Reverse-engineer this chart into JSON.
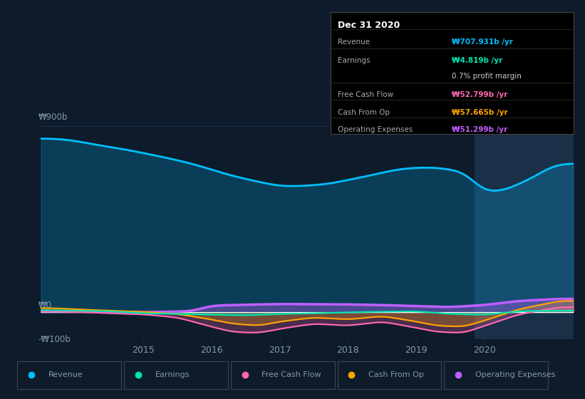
{
  "background_color": "#0d1b2a",
  "plot_bg_color": "#0d1b2a",
  "ylabel_top": "₩900b",
  "ylabel_bottom": "-₩100b",
  "ylabel_zero": "₩0",
  "x_ticks": [
    2015,
    2016,
    2017,
    2018,
    2019,
    2020
  ],
  "x_range": [
    2013.5,
    2021.3
  ],
  "y_range": [
    -130,
    970
  ],
  "series": {
    "Revenue": {
      "color": "#00bfff",
      "linewidth": 2.0
    },
    "Earnings": {
      "color": "#00e5b0",
      "linewidth": 1.5
    },
    "Free Cash Flow": {
      "color": "#ff69b4",
      "linewidth": 1.5
    },
    "Cash From Op": {
      "color": "#ffa500",
      "linewidth": 1.5
    },
    "Operating Expenses": {
      "color": "#bf5fff",
      "linewidth": 2.5
    }
  },
  "tooltip": {
    "title": "Dec 31 2020",
    "rows": [
      {
        "label": "Revenue",
        "value": "₩707.931b /yr",
        "color": "#00bfff"
      },
      {
        "label": "Earnings",
        "value": "₩4.819b /yr",
        "color": "#00e5b0"
      },
      {
        "label": "",
        "value": "0.7% profit margin",
        "color": "#cccccc"
      },
      {
        "label": "Free Cash Flow",
        "value": "₩52.799b /yr",
        "color": "#ff69b4"
      },
      {
        "label": "Cash From Op",
        "value": "₩57.665b /yr",
        "color": "#ffa500"
      },
      {
        "label": "Operating Expenses",
        "value": "₩51.299b /yr",
        "color": "#bf5fff"
      }
    ]
  },
  "legend": [
    {
      "label": "Revenue",
      "color": "#00bfff"
    },
    {
      "label": "Earnings",
      "color": "#00e5b0"
    },
    {
      "label": "Free Cash Flow",
      "color": "#ff69b4"
    },
    {
      "label": "Cash From Op",
      "color": "#ffa500"
    },
    {
      "label": "Operating Expenses",
      "color": "#bf5fff"
    }
  ],
  "grid_color": "#1e3050",
  "text_color": "#8899aa",
  "highlight_bg": "#1a2f48",
  "revenue_data_x": [
    2013.7,
    2014.0,
    2014.3,
    2014.7,
    2015.0,
    2015.3,
    2015.7,
    2016.0,
    2016.3,
    2016.7,
    2017.0,
    2017.3,
    2017.7,
    2018.0,
    2018.3,
    2018.7,
    2019.0,
    2019.3,
    2019.7,
    2020.0,
    2020.3,
    2020.7,
    2021.0,
    2021.2
  ],
  "revenue_data_y": [
    840,
    830,
    810,
    790,
    770,
    750,
    720,
    690,
    660,
    630,
    610,
    610,
    620,
    640,
    660,
    690,
    700,
    700,
    680,
    580,
    590,
    650,
    710,
    720
  ],
  "earnings_data_x": [
    2013.7,
    2014.0,
    2014.5,
    2015.0,
    2015.5,
    2016.0,
    2016.5,
    2017.0,
    2017.5,
    2018.0,
    2018.5,
    2019.0,
    2019.5,
    2020.0,
    2020.5,
    2021.1
  ],
  "earnings_data_y": [
    10,
    8,
    5,
    -5,
    -8,
    -12,
    -15,
    -8,
    -5,
    0,
    3,
    5,
    -8,
    -12,
    5,
    8
  ],
  "fcf_data_x": [
    2013.7,
    2014.0,
    2014.5,
    2015.0,
    2015.5,
    2016.0,
    2016.3,
    2016.7,
    2017.0,
    2017.5,
    2018.0,
    2018.5,
    2019.0,
    2019.3,
    2019.7,
    2020.0,
    2020.5,
    2021.1
  ],
  "fcf_data_y": [
    5,
    2,
    -5,
    -10,
    -25,
    -70,
    -95,
    -100,
    -80,
    -55,
    -65,
    -45,
    -75,
    -95,
    -100,
    -65,
    -10,
    25
  ],
  "cfo_data_x": [
    2013.7,
    2014.0,
    2014.5,
    2015.0,
    2015.5,
    2016.0,
    2016.3,
    2016.7,
    2017.0,
    2017.5,
    2018.0,
    2018.5,
    2019.0,
    2019.3,
    2019.7,
    2020.0,
    2020.5,
    2021.1
  ],
  "cfo_data_y": [
    20,
    15,
    8,
    2,
    -8,
    -35,
    -55,
    -65,
    -45,
    -25,
    -35,
    -18,
    -45,
    -65,
    -70,
    -40,
    15,
    55
  ],
  "ope_data_x": [
    2013.7,
    2014.0,
    2014.5,
    2015.0,
    2015.7,
    2016.0,
    2016.3,
    2017.0,
    2018.0,
    2018.5,
    2019.0,
    2019.5,
    2020.0,
    2020.5,
    2021.1
  ],
  "ope_data_y": [
    5,
    5,
    3,
    0,
    5,
    32,
    35,
    40,
    38,
    35,
    30,
    25,
    35,
    55,
    65
  ]
}
